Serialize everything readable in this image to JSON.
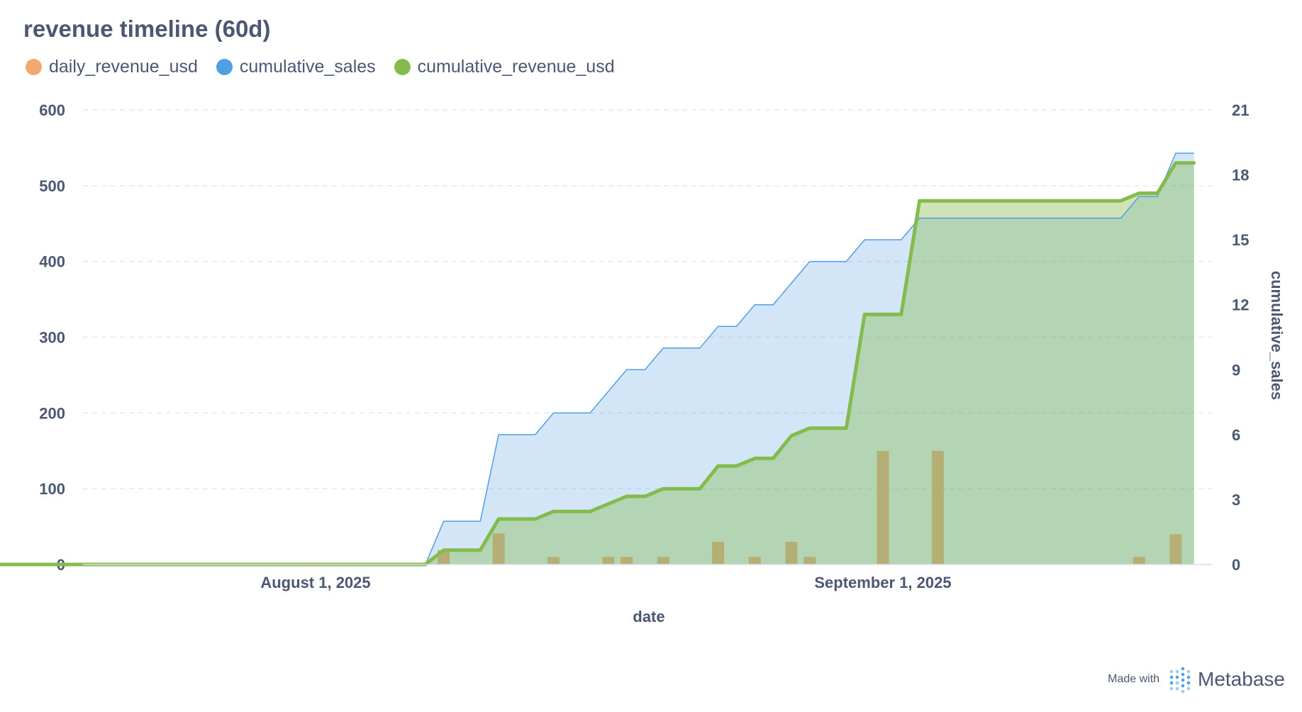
{
  "title": "revenue timeline (60d)",
  "colors": {
    "daily_revenue_usd": "#f2a86f",
    "cumulative_sales": "#509ee3",
    "cumulative_revenue_usd": "#84bb4c",
    "text": "#4c5773",
    "grid": "#e6e8ec"
  },
  "footer": {
    "made_with": "Made with",
    "brand": "Metabase",
    "logo_icon": "metabase-logo-icon"
  },
  "chart_data": {
    "type": "line",
    "xlabel": "date",
    "x_ticks": [
      "August 1, 2025",
      "September 1, 2025"
    ],
    "x_start": "2025-07-10",
    "x_end": "2025-09-08",
    "y_left": {
      "ticks": [
        "0",
        "100",
        "200",
        "300",
        "400",
        "500",
        "600"
      ],
      "min": 0,
      "max": 600
    },
    "y_right": {
      "label": "cumulative_sales",
      "ticks": [
        "0",
        "3",
        "6",
        "9",
        "12",
        "15",
        "18",
        "21"
      ],
      "min": 0,
      "max": 21
    },
    "legend": [
      "daily_revenue_usd",
      "cumulative_sales",
      "cumulative_revenue_usd"
    ],
    "grid": true,
    "series": [
      {
        "name": "daily_revenue_usd",
        "type": "bar",
        "axis": "left",
        "points": [
          [
            "2025-08-08",
            19
          ],
          [
            "2025-08-11",
            41
          ],
          [
            "2025-08-14",
            10
          ],
          [
            "2025-08-17",
            10
          ],
          [
            "2025-08-18",
            10
          ],
          [
            "2025-08-20",
            10
          ],
          [
            "2025-08-23",
            30
          ],
          [
            "2025-08-25",
            10
          ],
          [
            "2025-08-27",
            30
          ],
          [
            "2025-08-28",
            10
          ],
          [
            "2025-09-01",
            150
          ],
          [
            "2025-09-04",
            150
          ],
          [
            "2025-09-15",
            10
          ],
          [
            "2025-09-17",
            40
          ]
        ]
      },
      {
        "name": "cumulative_sales",
        "type": "area",
        "axis": "right",
        "points": [
          [
            "2025-07-10",
            0
          ],
          [
            "2025-08-07",
            0
          ],
          [
            "2025-08-08",
            2
          ],
          [
            "2025-08-10",
            2
          ],
          [
            "2025-08-11",
            6
          ],
          [
            "2025-08-13",
            6
          ],
          [
            "2025-08-14",
            7
          ],
          [
            "2025-08-16",
            7
          ],
          [
            "2025-08-18",
            9
          ],
          [
            "2025-08-19",
            9
          ],
          [
            "2025-08-20",
            10
          ],
          [
            "2025-08-22",
            10
          ],
          [
            "2025-08-23",
            11
          ],
          [
            "2025-08-24",
            11
          ],
          [
            "2025-08-25",
            12
          ],
          [
            "2025-08-26",
            12
          ],
          [
            "2025-08-28",
            14
          ],
          [
            "2025-08-30",
            14
          ],
          [
            "2025-08-31",
            15
          ],
          [
            "2025-09-02",
            15
          ],
          [
            "2025-09-03",
            16
          ],
          [
            "2025-09-14",
            16
          ],
          [
            "2025-09-15",
            17
          ],
          [
            "2025-09-16",
            17
          ],
          [
            "2025-09-17",
            19
          ],
          [
            "2025-09-18",
            19
          ]
        ]
      },
      {
        "name": "cumulative_revenue_usd",
        "type": "area",
        "axis": "left",
        "points": [
          [
            "2025-07-10",
            0
          ],
          [
            "2025-08-07",
            0
          ],
          [
            "2025-08-08",
            19
          ],
          [
            "2025-08-10",
            19
          ],
          [
            "2025-08-11",
            60
          ],
          [
            "2025-08-13",
            60
          ],
          [
            "2025-08-14",
            70
          ],
          [
            "2025-08-16",
            70
          ],
          [
            "2025-08-17",
            80
          ],
          [
            "2025-08-18",
            90
          ],
          [
            "2025-08-19",
            90
          ],
          [
            "2025-08-20",
            100
          ],
          [
            "2025-08-22",
            100
          ],
          [
            "2025-08-23",
            130
          ],
          [
            "2025-08-24",
            130
          ],
          [
            "2025-08-25",
            140
          ],
          [
            "2025-08-26",
            140
          ],
          [
            "2025-08-27",
            170
          ],
          [
            "2025-08-28",
            180
          ],
          [
            "2025-08-30",
            180
          ],
          [
            "2025-08-31",
            330
          ],
          [
            "2025-09-02",
            330
          ],
          [
            "2025-09-03",
            480
          ],
          [
            "2025-09-14",
            480
          ],
          [
            "2025-09-15",
            490
          ],
          [
            "2025-09-16",
            490
          ],
          [
            "2025-09-17",
            530
          ],
          [
            "2025-09-18",
            530
          ]
        ]
      }
    ]
  }
}
